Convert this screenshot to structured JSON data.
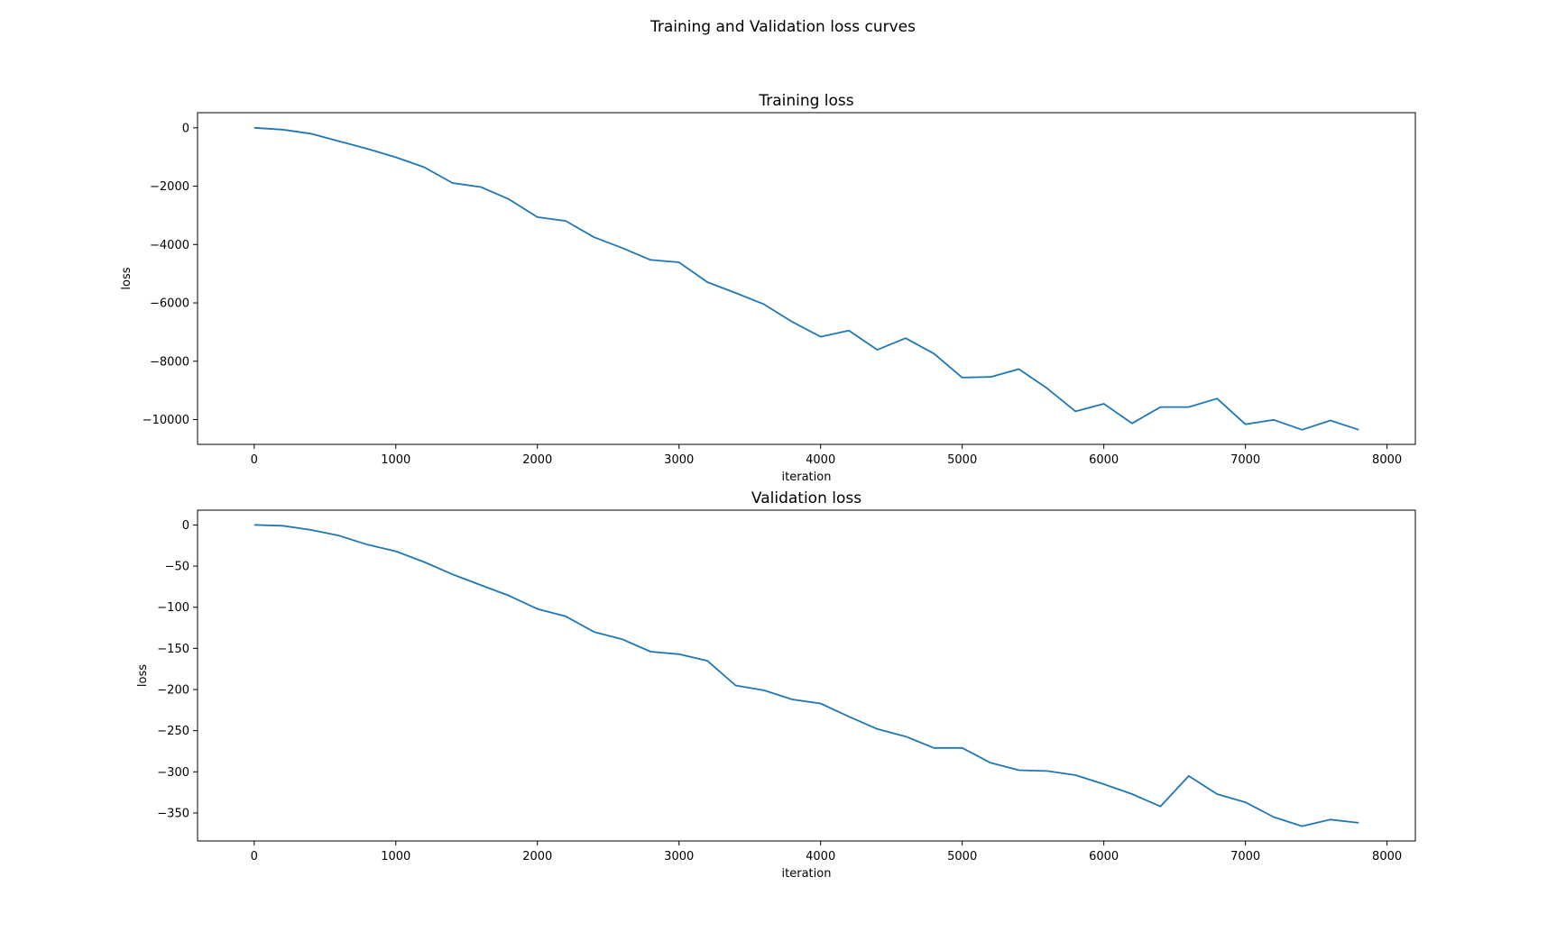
{
  "figure": {
    "suptitle": "Training and Validation loss curves"
  },
  "colors": {
    "line": "#1f77b4",
    "axes": "#000000",
    "background": "#ffffff"
  },
  "chart_data": [
    {
      "type": "line",
      "title": "Training loss",
      "xlabel": "iteration",
      "ylabel": "loss",
      "grid": false,
      "legend": "none",
      "xlim": [
        -400,
        8200
      ],
      "ylim": [
        -10850,
        520
      ],
      "xticks": [
        0,
        1000,
        2000,
        3000,
        4000,
        5000,
        6000,
        7000,
        8000
      ],
      "yticks": [
        0,
        -2000,
        -4000,
        -6000,
        -8000,
        -10000
      ],
      "series": [
        {
          "x": [
            0,
            200,
            400,
            600,
            800,
            1000,
            1200,
            1400,
            1600,
            1800,
            2000,
            2200,
            2400,
            2600,
            2800,
            3000,
            3200,
            3400,
            3600,
            3800,
            4000,
            4200,
            4400,
            4600,
            4800,
            5000,
            5200,
            5400,
            5600,
            5800,
            6000,
            6200,
            6400,
            6600,
            6800,
            7000,
            7200,
            7400,
            7600,
            7800
          ],
          "y": [
            0,
            -60,
            -200,
            -460,
            -720,
            -1010,
            -1350,
            -1890,
            -2030,
            -2450,
            -3060,
            -3190,
            -3750,
            -4120,
            -4530,
            -4610,
            -5290,
            -5660,
            -6050,
            -6650,
            -7160,
            -6950,
            -7610,
            -7210,
            -7740,
            -8560,
            -8540,
            -8270,
            -8930,
            -9720,
            -9460,
            -10130,
            -9570,
            -9570,
            -9280,
            -10160,
            -10010,
            -10350,
            -10030,
            -10350
          ]
        }
      ]
    },
    {
      "type": "line",
      "title": "Validation loss",
      "xlabel": "iteration",
      "ylabel": "loss",
      "grid": false,
      "legend": "none",
      "xlim": [
        -400,
        8200
      ],
      "ylim": [
        -384,
        18
      ],
      "xticks": [
        0,
        1000,
        2000,
        3000,
        4000,
        5000,
        6000,
        7000,
        8000
      ],
      "yticks": [
        0,
        -50,
        -100,
        -150,
        -200,
        -250,
        -300,
        -350
      ],
      "series": [
        {
          "x": [
            0,
            200,
            400,
            600,
            800,
            1000,
            1200,
            1400,
            1600,
            1800,
            2000,
            2200,
            2400,
            2600,
            2800,
            3000,
            3200,
            3400,
            3600,
            3800,
            4000,
            4200,
            4400,
            4600,
            4800,
            5000,
            5200,
            5400,
            5600,
            5800,
            6000,
            6200,
            6400,
            6600,
            6800,
            7000,
            7200,
            7400,
            7600,
            7800
          ],
          "y": [
            0,
            -1,
            -6,
            -13,
            -24,
            -32,
            -45,
            -60,
            -73,
            -86,
            -102,
            -111,
            -130,
            -139,
            -154,
            -157,
            -165,
            -195,
            -201,
            -212,
            -217,
            -233,
            -248,
            -257,
            -271,
            -271,
            -289,
            -298,
            -299,
            -304,
            -315,
            -327,
            -342,
            -305,
            -327,
            -337,
            -355,
            -366,
            -358,
            -362
          ]
        }
      ]
    }
  ]
}
